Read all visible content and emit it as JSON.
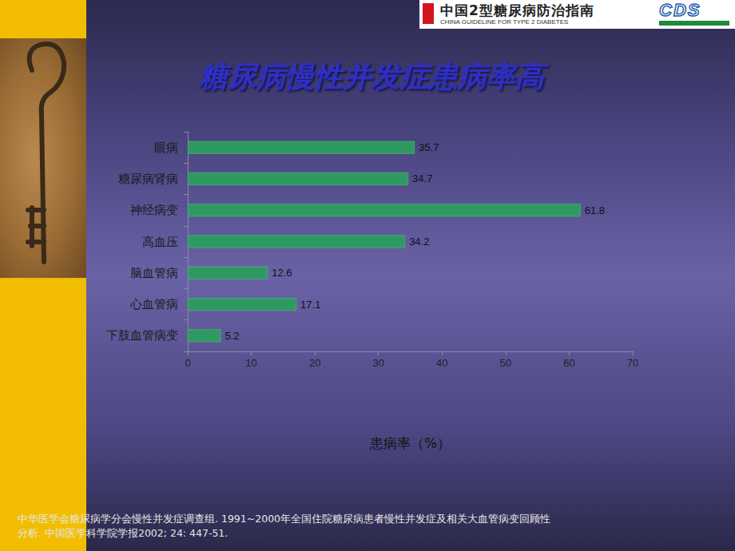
{
  "header": {
    "title": "中国2型糖尿病防治指南",
    "subtitle": "CHINA GUIDELINE FOR TYPE 2 DIABETES",
    "logo": "CDS"
  },
  "chart_data": {
    "type": "bar",
    "orientation": "horizontal",
    "title": "糖尿病慢性并发症患病率高",
    "x_label": "患病率（%）",
    "categories": [
      "眼病",
      "糖尿病肾病",
      "神经病变",
      "高血压",
      "脑血管病",
      "心血管病",
      "下肢血管病变"
    ],
    "values": [
      35.7,
      34.7,
      61.8,
      34.2,
      12.6,
      17.1,
      5.2
    ],
    "color": "#2e9a62",
    "xlim": [
      0,
      70
    ],
    "xticks": [
      0,
      10,
      20,
      30,
      40,
      50,
      60,
      70
    ],
    "grid": false,
    "data_labels": true,
    "annotations": [
      "中华医学会糖尿病学分会慢性并发症调查组. 1991~2000年全国住院糖尿病患者慢性并发症及相关大血管病变回顾性分析. 中国医学科学院学报2002; 24: 447-51."
    ]
  }
}
